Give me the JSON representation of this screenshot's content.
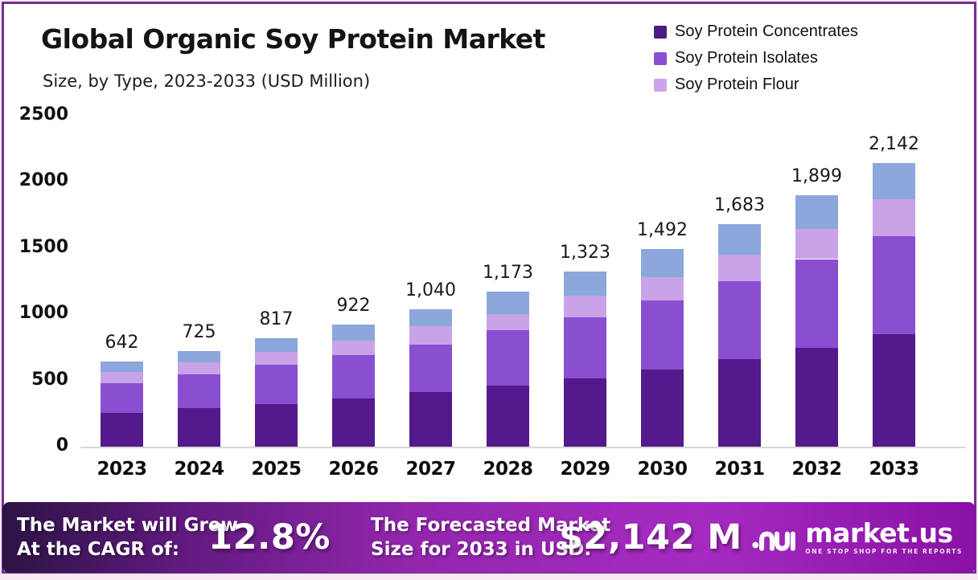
{
  "header": {
    "title": "Global Organic Soy Protein Market",
    "subtitle": "Size, by Type, 2023-2033 (USD Million)"
  },
  "legend": {
    "items": [
      {
        "label": "Soy Protein Concentrates",
        "color": "#4b1c87"
      },
      {
        "label": "Soy Protein Isolates",
        "color": "#8a4fd1"
      },
      {
        "label": "Soy Protein Flour",
        "color": "#c9a4ec"
      }
    ]
  },
  "chart_data": {
    "type": "bar",
    "stacked": true,
    "title": "Global Organic Soy Protein Market Size, by Type, 2023-2033 (USD Million)",
    "categories": [
      "2023",
      "2024",
      "2025",
      "2026",
      "2027",
      "2028",
      "2029",
      "2030",
      "2031",
      "2032",
      "2033"
    ],
    "series": [
      {
        "name": "Soy Protein Concentrates",
        "color": "#54198a",
        "values": [
          255,
          290,
          320,
          362,
          410,
          462,
          516,
          583,
          664,
          745,
          848
        ]
      },
      {
        "name": "Soy Protein Isolates",
        "color": "#8a4fd1",
        "values": [
          222,
          255,
          298,
          330,
          362,
          415,
          462,
          523,
          587,
          672,
          744
        ]
      },
      {
        "name": "Soy Protein Flour",
        "color": "#c9a3e8",
        "values": [
          90,
          95,
          100,
          110,
          140,
          127,
          162,
          176,
          197,
          229,
          278
        ]
      },
      {
        "name": "Unlabeled (blue segment, not in legend)",
        "color": "#8ba7dc",
        "in_legend": false,
        "values": [
          75,
          85,
          99,
          120,
          128,
          169,
          183,
          210,
          235,
          253,
          272
        ]
      }
    ],
    "totals": [
      642,
      725,
      817,
      922,
      1040,
      1173,
      1323,
      1492,
      1683,
      1899,
      2142
    ],
    "total_labels": [
      "642",
      "725",
      "817",
      "922",
      "1,040",
      "1,173",
      "1,323",
      "1,492",
      "1,683",
      "1,899",
      "2,142"
    ],
    "segment_values_estimated_from_pixels": true,
    "ylabel": "",
    "xlabel": "",
    "ylim": [
      0,
      2500
    ],
    "yticks": [
      0,
      500,
      1000,
      1500,
      2000,
      2500
    ],
    "grid": false,
    "legend_position": "top-right"
  },
  "footer": {
    "cagr_label_line1": "The Market will Grow",
    "cagr_label_line2": "At the CAGR of:",
    "cagr_value": "12.8%",
    "forecast_label_line1": "The Forecasted Market",
    "forecast_label_line2": "Size for 2033 in USD:",
    "forecast_value": "$2,142 M",
    "logo_text": "market.us",
    "logo_tagline": "ONE STOP SHOP FOR THE REPORTS"
  },
  "colors": {
    "frame_border": "#752f92",
    "outer_background": "#f6e9f2",
    "banner_gradient_left": "#2c1343",
    "banner_gradient_mid": "#9326ad",
    "banner_gradient_right": "#8a11a5"
  }
}
